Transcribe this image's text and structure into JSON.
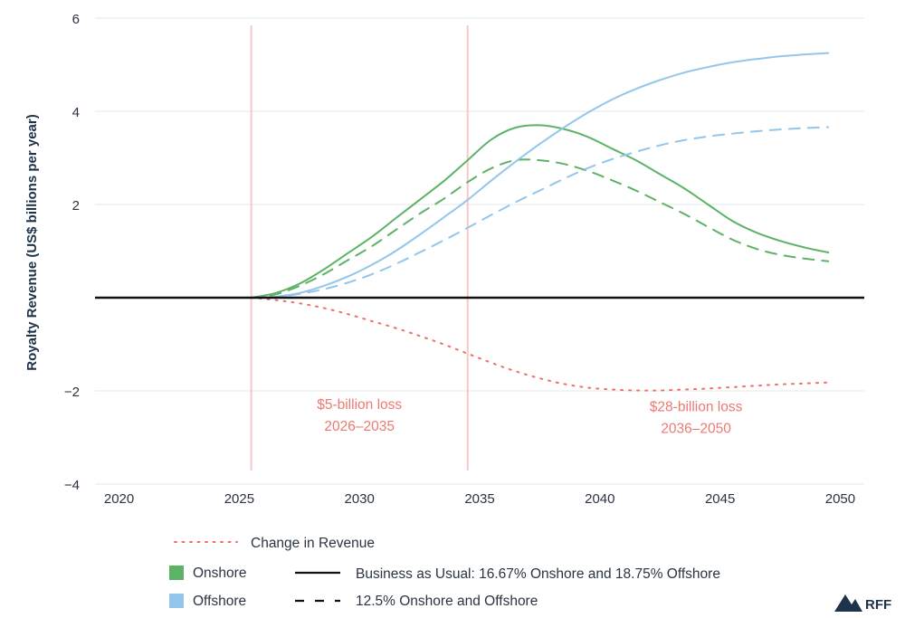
{
  "chart_data": {
    "type": "line",
    "xlabel": "",
    "ylabel": "Royalty Revenue (US$ billions per year)",
    "xlim": [
      2019,
      2051
    ],
    "ylim": [
      -4,
      6
    ],
    "x_ticks": [
      2020,
      2025,
      2030,
      2035,
      2040,
      2045,
      2050
    ],
    "x_tick_labels": [
      "2020",
      "2025",
      "2030",
      "2035",
      "2040",
      "2045",
      "2050"
    ],
    "y_ticks": [
      -4,
      -2,
      0,
      2,
      4,
      6
    ],
    "y_tick_labels": [
      "−4",
      "−2",
      "",
      "2",
      "4",
      "6"
    ],
    "grid": "horizontal",
    "colors": {
      "onshore": "#5cb366",
      "offshore": "#93c6ea",
      "change": "#ef6f6a",
      "baseline": "#111111",
      "period_line": "#f6c9c6",
      "annotation": "#ec7a72"
    },
    "series": [
      {
        "name": "Onshore — Business as Usual",
        "x": [
          2025.5,
          2026.5,
          2027.5,
          2028.5,
          2029.5,
          2030.5,
          2031.5,
          2032.5,
          2033.5,
          2034.5,
          2035.5,
          2036.5,
          2037.5,
          2038.5,
          2039.5,
          2040.5,
          2041.5,
          2042.5,
          2043.5,
          2044.5,
          2045.5,
          2046.5,
          2047.5,
          2048.5,
          2049.5
        ],
        "values": [
          0.0,
          0.1,
          0.3,
          0.6,
          0.95,
          1.3,
          1.7,
          2.1,
          2.5,
          2.95,
          3.4,
          3.65,
          3.7,
          3.62,
          3.45,
          3.2,
          2.95,
          2.65,
          2.35,
          2.0,
          1.65,
          1.4,
          1.22,
          1.08,
          0.97
        ]
      },
      {
        "name": "Onshore — 12.5% Onshore and Offshore",
        "x": [
          2025.5,
          2026.5,
          2027.5,
          2028.5,
          2029.5,
          2030.5,
          2031.5,
          2032.5,
          2033.5,
          2034.5,
          2035.5,
          2036.5,
          2037.5,
          2038.5,
          2039.5,
          2040.5,
          2041.5,
          2042.5,
          2043.5,
          2044.5,
          2045.5,
          2046.5,
          2047.5,
          2048.5,
          2049.5
        ],
        "values": [
          0.0,
          0.07,
          0.25,
          0.5,
          0.8,
          1.1,
          1.45,
          1.8,
          2.12,
          2.48,
          2.78,
          2.95,
          2.95,
          2.87,
          2.72,
          2.52,
          2.3,
          2.05,
          1.8,
          1.52,
          1.25,
          1.05,
          0.92,
          0.84,
          0.78
        ]
      },
      {
        "name": "Offshore — Business as Usual",
        "x": [
          2025.5,
          2026.5,
          2027.5,
          2028.5,
          2029.5,
          2030.5,
          2031.5,
          2032.5,
          2033.5,
          2034.5,
          2035.5,
          2036.5,
          2037.5,
          2038.5,
          2039.5,
          2040.5,
          2041.5,
          2042.5,
          2043.5,
          2044.5,
          2045.5,
          2046.5,
          2047.5,
          2048.5,
          2049.5
        ],
        "values": [
          0.0,
          0.02,
          0.1,
          0.25,
          0.45,
          0.7,
          1.0,
          1.35,
          1.72,
          2.1,
          2.52,
          2.92,
          3.3,
          3.65,
          3.97,
          4.25,
          4.48,
          4.67,
          4.83,
          4.95,
          5.05,
          5.12,
          5.18,
          5.22,
          5.25
        ]
      },
      {
        "name": "Offshore — 12.5% Onshore and Offshore",
        "x": [
          2025.5,
          2026.5,
          2027.5,
          2028.5,
          2029.5,
          2030.5,
          2031.5,
          2032.5,
          2033.5,
          2034.5,
          2035.5,
          2036.5,
          2037.5,
          2038.5,
          2039.5,
          2040.5,
          2041.5,
          2042.5,
          2043.5,
          2044.5,
          2045.5,
          2046.5,
          2047.5,
          2048.5,
          2049.5
        ],
        "values": [
          0.0,
          0.02,
          0.08,
          0.18,
          0.32,
          0.5,
          0.72,
          0.97,
          1.23,
          1.5,
          1.78,
          2.05,
          2.3,
          2.55,
          2.78,
          2.97,
          3.13,
          3.27,
          3.38,
          3.46,
          3.52,
          3.57,
          3.61,
          3.64,
          3.66
        ]
      },
      {
        "name": "Change in Revenue",
        "x": [
          2025.5,
          2026.5,
          2027.5,
          2028.5,
          2029.5,
          2030.5,
          2031.5,
          2032.5,
          2033.5,
          2034.5,
          2035.5,
          2036.5,
          2037.5,
          2038.5,
          2039.5,
          2040.5,
          2041.5,
          2042.5,
          2043.5,
          2044.5,
          2045.5,
          2046.5,
          2047.5,
          2048.5,
          2049.5
        ],
        "values": [
          0.0,
          -0.05,
          -0.12,
          -0.22,
          -0.35,
          -0.5,
          -0.65,
          -0.82,
          -1.0,
          -1.2,
          -1.4,
          -1.58,
          -1.73,
          -1.85,
          -1.93,
          -1.97,
          -1.99,
          -1.99,
          -1.97,
          -1.95,
          -1.92,
          -1.89,
          -1.86,
          -1.84,
          -1.82
        ]
      }
    ],
    "period_lines": [
      2025.5,
      2034.5
    ],
    "annotations": [
      {
        "line1": "$5-billion loss",
        "line2": "2026–2035",
        "x": 2030,
        "y": -2.5
      },
      {
        "line1": "$28-billion loss",
        "line2": "2036–2050",
        "x": 2044,
        "y": -2.55
      }
    ],
    "legend": {
      "placement": "bottom",
      "change": "Change in Revenue",
      "onshore": "Onshore",
      "offshore": "Offshore",
      "bau": "Business as Usual: 16.67% Onshore and 18.75% Offshore",
      "alt": "12.5% Onshore and Offshore"
    }
  },
  "branding": {
    "logo_text": "RFF",
    "logo_icon": "mountain-icon"
  }
}
